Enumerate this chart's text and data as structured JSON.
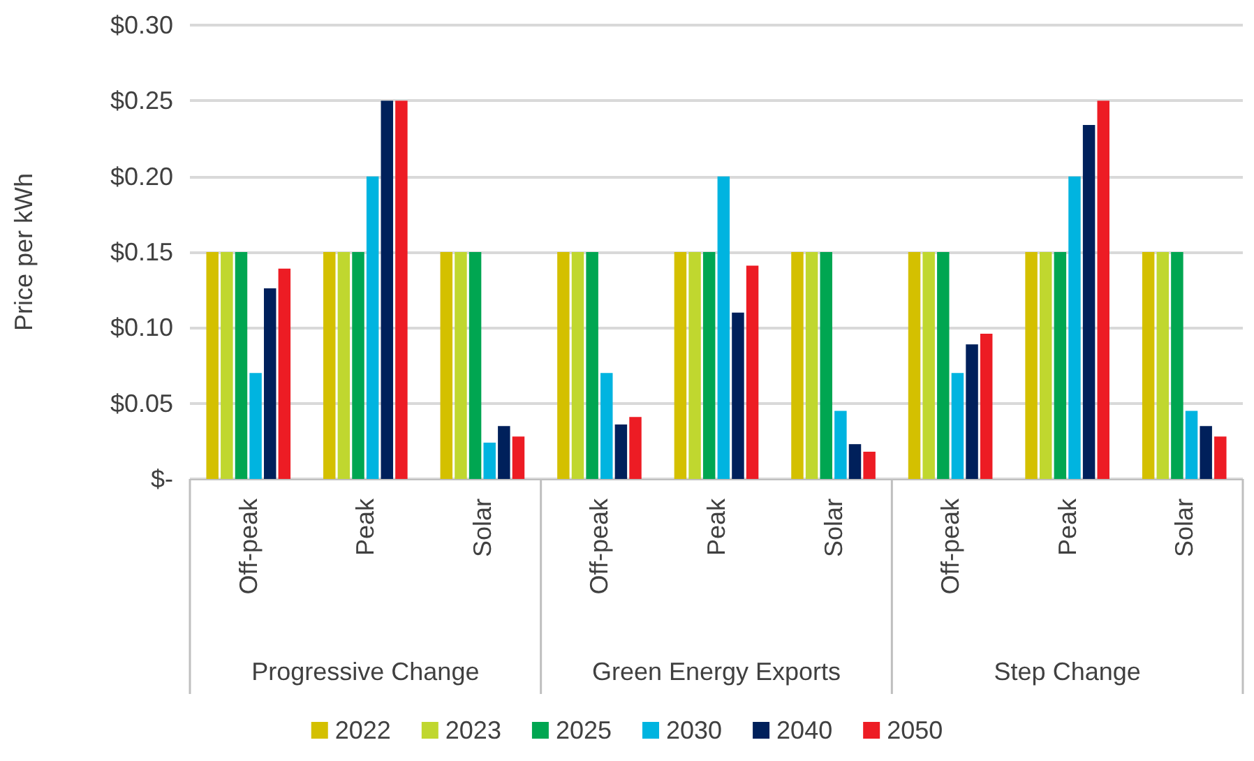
{
  "chart_data": {
    "type": "bar",
    "ylabel": "Price per kWh",
    "categories": [
      "Off-peak",
      "Peak",
      "Solar",
      "Off-peak",
      "Peak",
      "Solar",
      "Off-peak",
      "Peak",
      "Solar"
    ],
    "annotations": [
      "Progressive Change",
      "Green Energy Exports",
      "Step Change"
    ],
    "series": [
      {
        "name": "2022",
        "color": "#d4c000",
        "values": [
          0.15,
          0.15,
          0.15,
          0.15,
          0.15,
          0.15,
          0.15,
          0.15,
          0.15
        ]
      },
      {
        "name": "2023",
        "color": "#c0d72f",
        "values": [
          0.15,
          0.15,
          0.15,
          0.15,
          0.15,
          0.15,
          0.15,
          0.15,
          0.15
        ]
      },
      {
        "name": "2025",
        "color": "#00a651",
        "values": [
          0.15,
          0.15,
          0.15,
          0.15,
          0.15,
          0.15,
          0.15,
          0.15,
          0.15
        ]
      },
      {
        "name": "2030",
        "color": "#00b4e0",
        "values": [
          0.07,
          0.2,
          0.024,
          0.07,
          0.2,
          0.045,
          0.07,
          0.2,
          0.045
        ]
      },
      {
        "name": "2040",
        "color": "#00205b",
        "values": [
          0.126,
          0.25,
          0.035,
          0.036,
          0.11,
          0.023,
          0.089,
          0.234,
          0.035
        ]
      },
      {
        "name": "2050",
        "color": "#ed1c24",
        "values": [
          0.139,
          0.25,
          0.028,
          0.041,
          0.141,
          0.018,
          0.096,
          0.25,
          0.028
        ]
      }
    ],
    "ylim": [
      0,
      0.3
    ],
    "yticks": [
      {
        "value": 0,
        "label": "$-"
      },
      {
        "value": 0.05,
        "label": "$0.05"
      },
      {
        "value": 0.1,
        "label": "$0.10"
      },
      {
        "value": 0.15,
        "label": "$0.15"
      },
      {
        "value": 0.2,
        "label": "$0.20"
      },
      {
        "value": 0.25,
        "label": "$0.25"
      },
      {
        "value": 0.3,
        "label": "$0.30"
      }
    ],
    "grid": "y",
    "legend": "bottom"
  }
}
